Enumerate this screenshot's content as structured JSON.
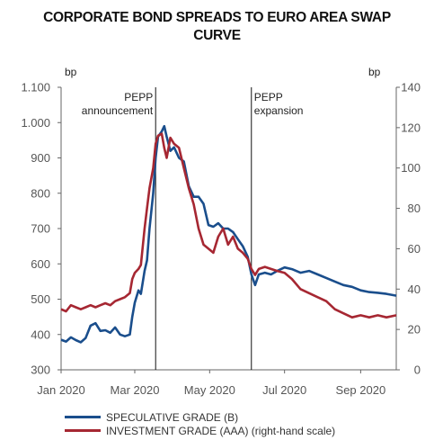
{
  "chart_data": {
    "type": "line",
    "title_line1": "CORPORATE BOND SPREADS TO EURO AREA SWAP",
    "title_line2": "CURVE",
    "left_unit": "bp",
    "right_unit": "bp",
    "left_axis": {
      "min": 300,
      "max": 1100,
      "ticks": [
        "300",
        "400",
        "500",
        "600",
        "700",
        "800",
        "900",
        "1.000",
        "1.100"
      ]
    },
    "right_axis": {
      "min": 0,
      "max": 140,
      "ticks": [
        "0",
        "20",
        "40",
        "60",
        "80",
        "100",
        "120",
        "140"
      ]
    },
    "x_axis": {
      "start": "2020-01-01",
      "end": "2020-09-30",
      "ticks": [
        {
          "label": "Jan 2020",
          "date": "2020-01-01"
        },
        {
          "label": "Mar 2020",
          "date": "2020-03-01"
        },
        {
          "label": "May 2020",
          "date": "2020-05-01"
        },
        {
          "label": "Jul 2020",
          "date": "2020-07-01"
        },
        {
          "label": "Sep 2020",
          "date": "2020-09-01"
        }
      ]
    },
    "annotations": [
      {
        "line1": "PEPP",
        "line2": "announcement",
        "date": "2020-03-18",
        "text_side": "left"
      },
      {
        "line1": "PEPP",
        "line2": "expansion",
        "date": "2020-06-04",
        "text_side": "right"
      }
    ],
    "series": [
      {
        "name": "SPECULATIVE GRADE (B)",
        "axis": "left",
        "color": "#1a4e8c",
        "points": [
          [
            "2020-01-01",
            385
          ],
          [
            "2020-01-05",
            380
          ],
          [
            "2020-01-09",
            392
          ],
          [
            "2020-01-13",
            384
          ],
          [
            "2020-01-17",
            378
          ],
          [
            "2020-01-21",
            390
          ],
          [
            "2020-01-25",
            425
          ],
          [
            "2020-01-29",
            432
          ],
          [
            "2020-02-02",
            410
          ],
          [
            "2020-02-06",
            412
          ],
          [
            "2020-02-10",
            405
          ],
          [
            "2020-02-14",
            420
          ],
          [
            "2020-02-18",
            400
          ],
          [
            "2020-02-22",
            395
          ],
          [
            "2020-02-26",
            400
          ],
          [
            "2020-02-28",
            450
          ],
          [
            "2020-03-01",
            490
          ],
          [
            "2020-03-04",
            525
          ],
          [
            "2020-03-06",
            515
          ],
          [
            "2020-03-09",
            580
          ],
          [
            "2020-03-11",
            610
          ],
          [
            "2020-03-13",
            700
          ],
          [
            "2020-03-16",
            800
          ],
          [
            "2020-03-18",
            900
          ],
          [
            "2020-03-20",
            960
          ],
          [
            "2020-03-23",
            975
          ],
          [
            "2020-03-25",
            990
          ],
          [
            "2020-03-27",
            960
          ],
          [
            "2020-03-30",
            920
          ],
          [
            "2020-04-02",
            930
          ],
          [
            "2020-04-06",
            900
          ],
          [
            "2020-04-10",
            890
          ],
          [
            "2020-04-14",
            820
          ],
          [
            "2020-04-18",
            790
          ],
          [
            "2020-04-22",
            790
          ],
          [
            "2020-04-26",
            770
          ],
          [
            "2020-04-30",
            710
          ],
          [
            "2020-05-04",
            705
          ],
          [
            "2020-05-08",
            715
          ],
          [
            "2020-05-12",
            700
          ],
          [
            "2020-05-16",
            700
          ],
          [
            "2020-05-20",
            690
          ],
          [
            "2020-05-24",
            670
          ],
          [
            "2020-05-28",
            650
          ],
          [
            "2020-06-01",
            620
          ],
          [
            "2020-06-04",
            570
          ],
          [
            "2020-06-07",
            540
          ],
          [
            "2020-06-10",
            570
          ],
          [
            "2020-06-15",
            575
          ],
          [
            "2020-06-20",
            570
          ],
          [
            "2020-06-25",
            580
          ],
          [
            "2020-07-01",
            590
          ],
          [
            "2020-07-07",
            585
          ],
          [
            "2020-07-14",
            575
          ],
          [
            "2020-07-21",
            580
          ],
          [
            "2020-07-28",
            570
          ],
          [
            "2020-08-04",
            560
          ],
          [
            "2020-08-11",
            550
          ],
          [
            "2020-08-18",
            540
          ],
          [
            "2020-08-25",
            535
          ],
          [
            "2020-09-01",
            525
          ],
          [
            "2020-09-08",
            520
          ],
          [
            "2020-09-15",
            518
          ],
          [
            "2020-09-22",
            515
          ],
          [
            "2020-09-30",
            510
          ]
        ]
      },
      {
        "name": "INVESTMENT GRADE (AAA) (right-hand scale)",
        "axis": "right",
        "color": "#a62732",
        "points": [
          [
            "2020-01-01",
            30
          ],
          [
            "2020-01-05",
            29
          ],
          [
            "2020-01-09",
            32
          ],
          [
            "2020-01-13",
            31
          ],
          [
            "2020-01-17",
            30
          ],
          [
            "2020-01-21",
            31
          ],
          [
            "2020-01-25",
            32
          ],
          [
            "2020-01-29",
            31
          ],
          [
            "2020-02-02",
            32
          ],
          [
            "2020-02-06",
            33
          ],
          [
            "2020-02-10",
            32
          ],
          [
            "2020-02-14",
            34
          ],
          [
            "2020-02-18",
            35
          ],
          [
            "2020-02-22",
            36
          ],
          [
            "2020-02-26",
            38
          ],
          [
            "2020-02-28",
            45
          ],
          [
            "2020-03-01",
            48
          ],
          [
            "2020-03-04",
            50
          ],
          [
            "2020-03-06",
            52
          ],
          [
            "2020-03-09",
            70
          ],
          [
            "2020-03-11",
            80
          ],
          [
            "2020-03-13",
            90
          ],
          [
            "2020-03-16",
            100
          ],
          [
            "2020-03-18",
            112
          ],
          [
            "2020-03-20",
            116
          ],
          [
            "2020-03-23",
            117
          ],
          [
            "2020-03-25",
            110
          ],
          [
            "2020-03-27",
            105
          ],
          [
            "2020-03-30",
            115
          ],
          [
            "2020-04-02",
            112
          ],
          [
            "2020-04-06",
            110
          ],
          [
            "2020-04-10",
            100
          ],
          [
            "2020-04-14",
            90
          ],
          [
            "2020-04-18",
            82
          ],
          [
            "2020-04-22",
            70
          ],
          [
            "2020-04-26",
            62
          ],
          [
            "2020-04-30",
            60
          ],
          [
            "2020-05-04",
            58
          ],
          [
            "2020-05-08",
            66
          ],
          [
            "2020-05-12",
            70
          ],
          [
            "2020-05-16",
            62
          ],
          [
            "2020-05-20",
            66
          ],
          [
            "2020-05-24",
            60
          ],
          [
            "2020-05-28",
            58
          ],
          [
            "2020-06-01",
            55
          ],
          [
            "2020-06-04",
            50
          ],
          [
            "2020-06-07",
            47
          ],
          [
            "2020-06-10",
            50
          ],
          [
            "2020-06-15",
            51
          ],
          [
            "2020-06-20",
            50
          ],
          [
            "2020-06-25",
            49
          ],
          [
            "2020-07-01",
            48
          ],
          [
            "2020-07-07",
            45
          ],
          [
            "2020-07-14",
            40
          ],
          [
            "2020-07-21",
            38
          ],
          [
            "2020-07-28",
            36
          ],
          [
            "2020-08-04",
            34
          ],
          [
            "2020-08-11",
            30
          ],
          [
            "2020-08-18",
            28
          ],
          [
            "2020-08-25",
            26
          ],
          [
            "2020-09-01",
            27
          ],
          [
            "2020-09-08",
            26
          ],
          [
            "2020-09-15",
            27
          ],
          [
            "2020-09-22",
            26
          ],
          [
            "2020-09-30",
            27
          ]
        ]
      }
    ]
  }
}
